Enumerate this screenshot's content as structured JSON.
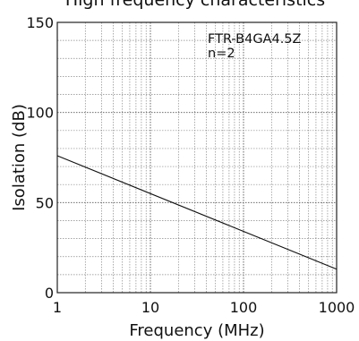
{
  "chart_data": {
    "type": "line",
    "title": "High frequency characteristics",
    "xlabel": "Frequency (MHz)",
    "ylabel": "Isolation (dB)",
    "xscale": "log",
    "xlim": [
      1,
      1000
    ],
    "ylim": [
      0,
      150
    ],
    "x_ticks": [
      1,
      10,
      100,
      1000
    ],
    "x_tick_labels": [
      "1",
      "10",
      "100",
      "1000"
    ],
    "y_ticks": [
      0,
      50,
      100,
      150
    ],
    "y_tick_labels": [
      "0",
      "50",
      "100",
      "150"
    ],
    "grid": true,
    "series": [
      {
        "x": [
          1,
          1000
        ],
        "y": [
          76,
          13
        ]
      }
    ],
    "annotations": [
      "FTR-B4GA4.5Z",
      "n=2"
    ]
  }
}
